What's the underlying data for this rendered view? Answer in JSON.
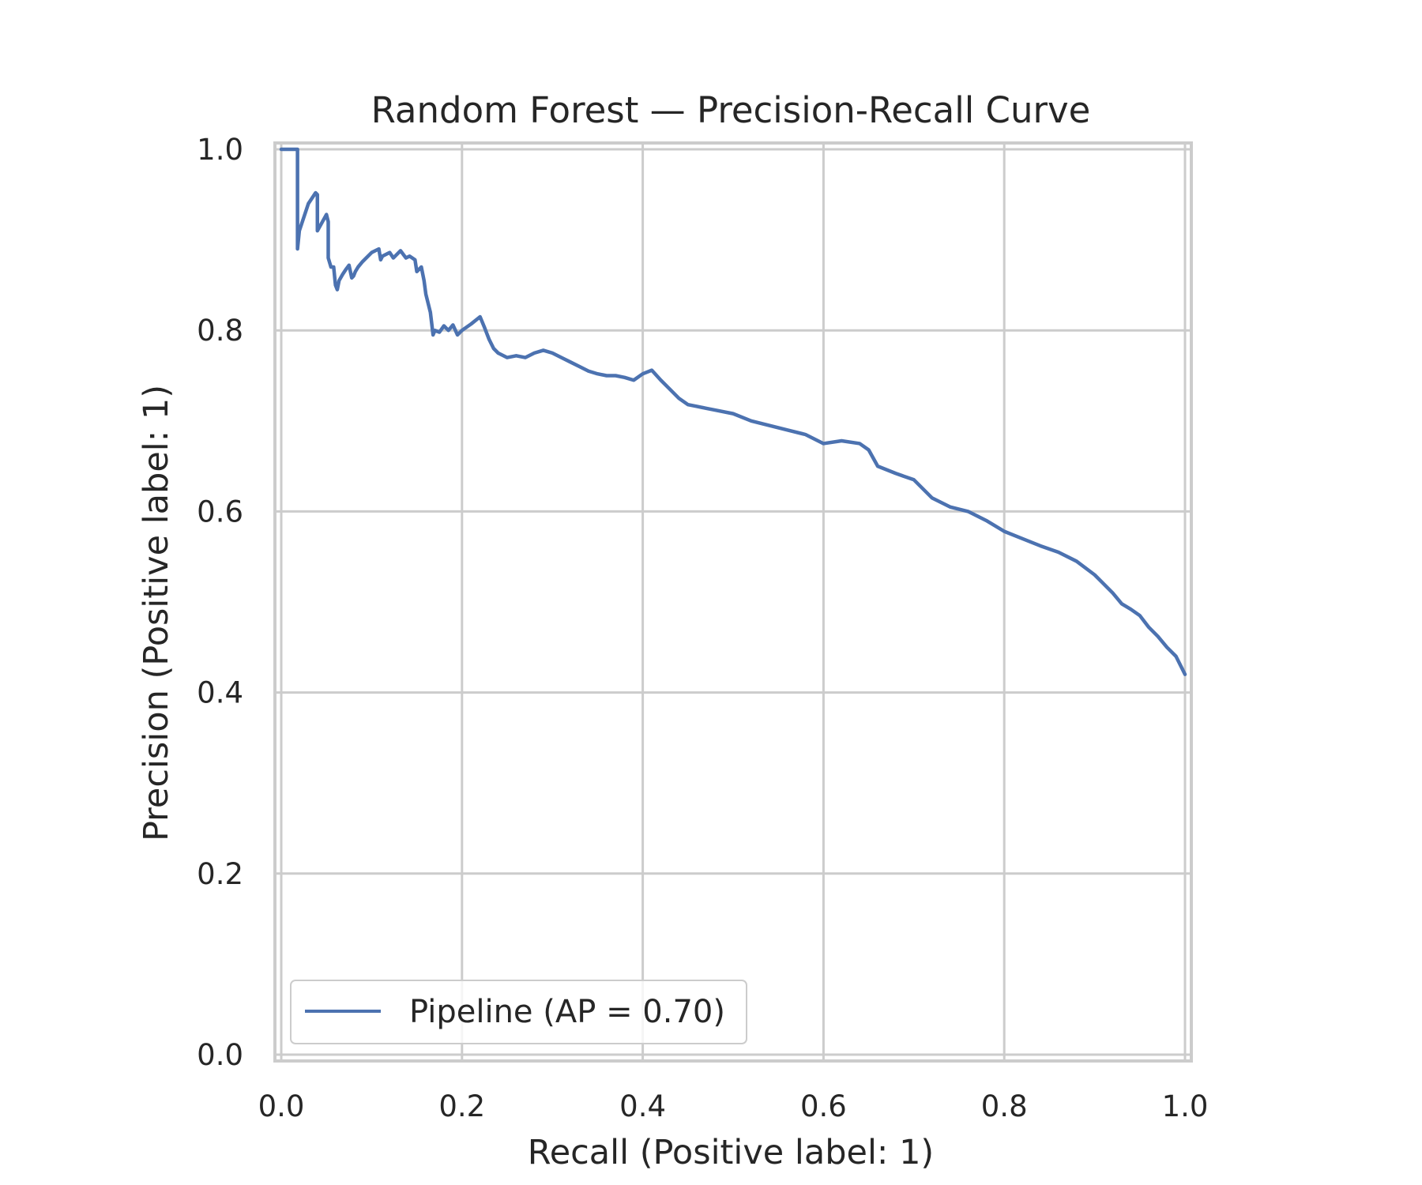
{
  "chart_data": {
    "type": "line",
    "title": "Random Forest — Precision-Recall Curve",
    "xlabel": "Recall (Positive label: 1)",
    "ylabel": "Precision (Positive label: 1)",
    "xlim": [
      -0.007,
      1.007
    ],
    "ylim": [
      -0.007,
      1.007
    ],
    "xticks": [
      0.0,
      0.2,
      0.4,
      0.6,
      0.8,
      1.0
    ],
    "yticks": [
      0.0,
      0.2,
      0.4,
      0.6,
      0.8,
      1.0
    ],
    "xtick_labels": [
      "0.0",
      "0.2",
      "0.4",
      "0.6",
      "0.8",
      "1.0"
    ],
    "ytick_labels": [
      "0.0",
      "0.2",
      "0.4",
      "0.6",
      "0.8",
      "1.0"
    ],
    "grid": true,
    "legend": {
      "position": "lower-left",
      "entries": [
        "Pipeline (AP = 0.70)"
      ]
    },
    "series": [
      {
        "name": "Pipeline (AP = 0.70)",
        "color": "#4c72b0",
        "x": [
          0.0,
          0.018,
          0.018,
          0.02,
          0.03,
          0.038,
          0.04,
          0.04,
          0.05,
          0.052,
          0.052,
          0.055,
          0.058,
          0.06,
          0.062,
          0.064,
          0.068,
          0.072,
          0.075,
          0.078,
          0.08,
          0.082,
          0.085,
          0.09,
          0.1,
          0.108,
          0.11,
          0.112,
          0.12,
          0.124,
          0.128,
          0.132,
          0.138,
          0.142,
          0.148,
          0.15,
          0.155,
          0.158,
          0.16,
          0.165,
          0.168,
          0.17,
          0.175,
          0.18,
          0.185,
          0.19,
          0.195,
          0.2,
          0.21,
          0.22,
          0.225,
          0.23,
          0.235,
          0.24,
          0.25,
          0.26,
          0.27,
          0.28,
          0.29,
          0.3,
          0.31,
          0.32,
          0.33,
          0.34,
          0.35,
          0.36,
          0.37,
          0.38,
          0.39,
          0.4,
          0.41,
          0.42,
          0.43,
          0.44,
          0.45,
          0.46,
          0.47,
          0.48,
          0.5,
          0.52,
          0.54,
          0.56,
          0.58,
          0.6,
          0.62,
          0.64,
          0.65,
          0.66,
          0.68,
          0.7,
          0.72,
          0.74,
          0.76,
          0.78,
          0.8,
          0.82,
          0.84,
          0.86,
          0.88,
          0.9,
          0.91,
          0.92,
          0.93,
          0.94,
          0.95,
          0.96,
          0.97,
          0.98,
          0.99,
          1.0
        ],
        "y": [
          1.0,
          1.0,
          0.89,
          0.91,
          0.94,
          0.952,
          0.95,
          0.91,
          0.928,
          0.92,
          0.88,
          0.87,
          0.87,
          0.85,
          0.845,
          0.855,
          0.862,
          0.868,
          0.872,
          0.858,
          0.86,
          0.865,
          0.87,
          0.876,
          0.886,
          0.89,
          0.878,
          0.882,
          0.886,
          0.88,
          0.884,
          0.888,
          0.88,
          0.882,
          0.878,
          0.865,
          0.87,
          0.855,
          0.84,
          0.82,
          0.795,
          0.8,
          0.798,
          0.805,
          0.8,
          0.806,
          0.795,
          0.8,
          0.807,
          0.815,
          0.803,
          0.79,
          0.78,
          0.775,
          0.77,
          0.772,
          0.77,
          0.775,
          0.778,
          0.775,
          0.77,
          0.765,
          0.76,
          0.755,
          0.752,
          0.75,
          0.75,
          0.748,
          0.745,
          0.752,
          0.756,
          0.745,
          0.735,
          0.725,
          0.718,
          0.716,
          0.714,
          0.712,
          0.708,
          0.7,
          0.695,
          0.69,
          0.685,
          0.675,
          0.678,
          0.675,
          0.668,
          0.65,
          0.642,
          0.635,
          0.615,
          0.605,
          0.6,
          0.59,
          0.578,
          0.57,
          0.562,
          0.555,
          0.545,
          0.53,
          0.52,
          0.51,
          0.498,
          0.492,
          0.485,
          0.472,
          0.462,
          0.45,
          0.44,
          0.42
        ]
      }
    ]
  }
}
